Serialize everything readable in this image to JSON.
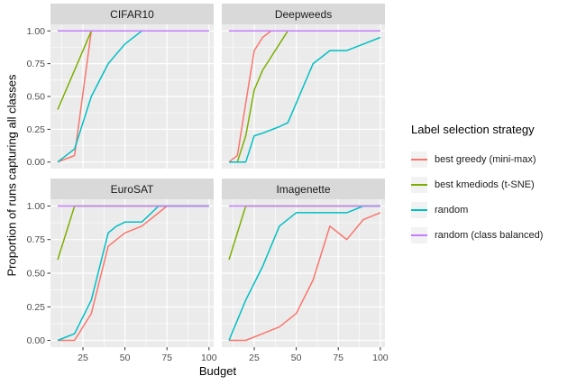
{
  "figure": {
    "background": "#FFFFFF"
  },
  "chart_data": {
    "type": "line",
    "title": "",
    "xlabel": "Budget",
    "ylabel": "Proportion of runs capturing all classes",
    "xlim": [
      10,
      100
    ],
    "ylim": [
      0,
      1
    ],
    "x_ticks": [
      25,
      50,
      75,
      100
    ],
    "x_tick_labels": [
      "25",
      "50",
      "75",
      "100"
    ],
    "y_ticks": [
      0,
      0.25,
      0.5,
      0.75,
      1
    ],
    "y_tick_labels": [
      "0.00",
      "0.25",
      "0.50",
      "0.75",
      "1.00"
    ],
    "grid": true,
    "legend": {
      "title": "Label selection strategy",
      "position": "right",
      "entries": [
        {
          "label": "best greedy (mini-max)",
          "color": "#F8766D"
        },
        {
          "label": "best kmediods (t-SNE)",
          "color": "#7CAE00"
        },
        {
          "label": "random",
          "color": "#00BFC4"
        },
        {
          "label": "random (class balanced)",
          "color": "#C77CFF"
        }
      ]
    },
    "facets": [
      {
        "title": "CIFAR10",
        "series": [
          {
            "name": "best greedy (mini-max)",
            "color": "#F8766D",
            "points": [
              [
                10,
                0
              ],
              [
                20,
                0.05
              ],
              [
                30,
                1
              ],
              [
                100,
                1
              ]
            ]
          },
          {
            "name": "best kmediods (t-SNE)",
            "color": "#7CAE00",
            "points": [
              [
                10,
                0.4
              ],
              [
                20,
                0.7
              ],
              [
                30,
                1
              ],
              [
                100,
                1
              ]
            ]
          },
          {
            "name": "random",
            "color": "#00BFC4",
            "points": [
              [
                10,
                0
              ],
              [
                20,
                0.1
              ],
              [
                30,
                0.5
              ],
              [
                40,
                0.75
              ],
              [
                50,
                0.9
              ],
              [
                60,
                1
              ],
              [
                100,
                1
              ]
            ]
          },
          {
            "name": "random (class balanced)",
            "color": "#C77CFF",
            "points": [
              [
                10,
                1
              ],
              [
                100,
                1
              ]
            ]
          }
        ]
      },
      {
        "title": "Deepweeds",
        "series": [
          {
            "name": "best greedy (mini-max)",
            "color": "#F8766D",
            "points": [
              [
                10,
                0
              ],
              [
                15,
                0.05
              ],
              [
                20,
                0.45
              ],
              [
                25,
                0.85
              ],
              [
                30,
                0.95
              ],
              [
                35,
                1
              ],
              [
                100,
                1
              ]
            ]
          },
          {
            "name": "best kmediods (t-SNE)",
            "color": "#7CAE00",
            "points": [
              [
                10,
                0
              ],
              [
                15,
                0
              ],
              [
                20,
                0.2
              ],
              [
                25,
                0.55
              ],
              [
                30,
                0.7
              ],
              [
                35,
                0.8
              ],
              [
                40,
                0.9
              ],
              [
                45,
                1
              ],
              [
                100,
                1
              ]
            ]
          },
          {
            "name": "random",
            "color": "#00BFC4",
            "points": [
              [
                10,
                0
              ],
              [
                20,
                0
              ],
              [
                25,
                0.2
              ],
              [
                30,
                0.22
              ],
              [
                40,
                0.27
              ],
              [
                45,
                0.3
              ],
              [
                50,
                0.45
              ],
              [
                55,
                0.6
              ],
              [
                60,
                0.75
              ],
              [
                70,
                0.85
              ],
              [
                80,
                0.85
              ],
              [
                90,
                0.9
              ],
              [
                100,
                0.95
              ]
            ]
          },
          {
            "name": "random (class balanced)",
            "color": "#C77CFF",
            "points": [
              [
                10,
                1
              ],
              [
                100,
                1
              ]
            ]
          }
        ]
      },
      {
        "title": "EuroSAT",
        "series": [
          {
            "name": "best greedy (mini-max)",
            "color": "#F8766D",
            "points": [
              [
                10,
                0
              ],
              [
                20,
                0
              ],
              [
                25,
                0.1
              ],
              [
                30,
                0.2
              ],
              [
                35,
                0.45
              ],
              [
                40,
                0.7
              ],
              [
                45,
                0.75
              ],
              [
                50,
                0.8
              ],
              [
                60,
                0.85
              ],
              [
                65,
                0.9
              ],
              [
                75,
                1
              ],
              [
                100,
                1
              ]
            ]
          },
          {
            "name": "best kmediods (t-SNE)",
            "color": "#7CAE00",
            "points": [
              [
                10,
                0.6
              ],
              [
                20,
                1
              ],
              [
                100,
                1
              ]
            ]
          },
          {
            "name": "random",
            "color": "#00BFC4",
            "points": [
              [
                10,
                0
              ],
              [
                20,
                0.05
              ],
              [
                30,
                0.3
              ],
              [
                40,
                0.8
              ],
              [
                45,
                0.85
              ],
              [
                50,
                0.88
              ],
              [
                60,
                0.88
              ],
              [
                70,
                1
              ],
              [
                100,
                1
              ]
            ]
          },
          {
            "name": "random (class balanced)",
            "color": "#C77CFF",
            "points": [
              [
                10,
                1
              ],
              [
                100,
                1
              ]
            ]
          }
        ]
      },
      {
        "title": "Imagenette",
        "series": [
          {
            "name": "best greedy (mini-max)",
            "color": "#F8766D",
            "points": [
              [
                10,
                0
              ],
              [
                20,
                0
              ],
              [
                30,
                0.05
              ],
              [
                40,
                0.1
              ],
              [
                50,
                0.2
              ],
              [
                60,
                0.45
              ],
              [
                70,
                0.85
              ],
              [
                80,
                0.75
              ],
              [
                90,
                0.9
              ],
              [
                100,
                0.95
              ]
            ]
          },
          {
            "name": "best kmediods (t-SNE)",
            "color": "#7CAE00",
            "points": [
              [
                10,
                0.6
              ],
              [
                20,
                1
              ],
              [
                100,
                1
              ]
            ]
          },
          {
            "name": "random",
            "color": "#00BFC4",
            "points": [
              [
                10,
                0
              ],
              [
                20,
                0.3
              ],
              [
                30,
                0.55
              ],
              [
                40,
                0.85
              ],
              [
                50,
                0.95
              ],
              [
                60,
                0.95
              ],
              [
                70,
                0.95
              ],
              [
                80,
                0.95
              ],
              [
                90,
                1
              ],
              [
                100,
                1
              ]
            ]
          },
          {
            "name": "random (class balanced)",
            "color": "#C77CFF",
            "points": [
              [
                10,
                1
              ],
              [
                100,
                1
              ]
            ]
          }
        ]
      }
    ],
    "style": {
      "panel_background": "#EBEBEB",
      "strip_background": "#D9D9D9",
      "grid_color": "#FFFFFF",
      "tick_color": "#333333",
      "tick_label_color": "#4D4D4D",
      "legend_key_background": "#F2F2F2"
    }
  }
}
